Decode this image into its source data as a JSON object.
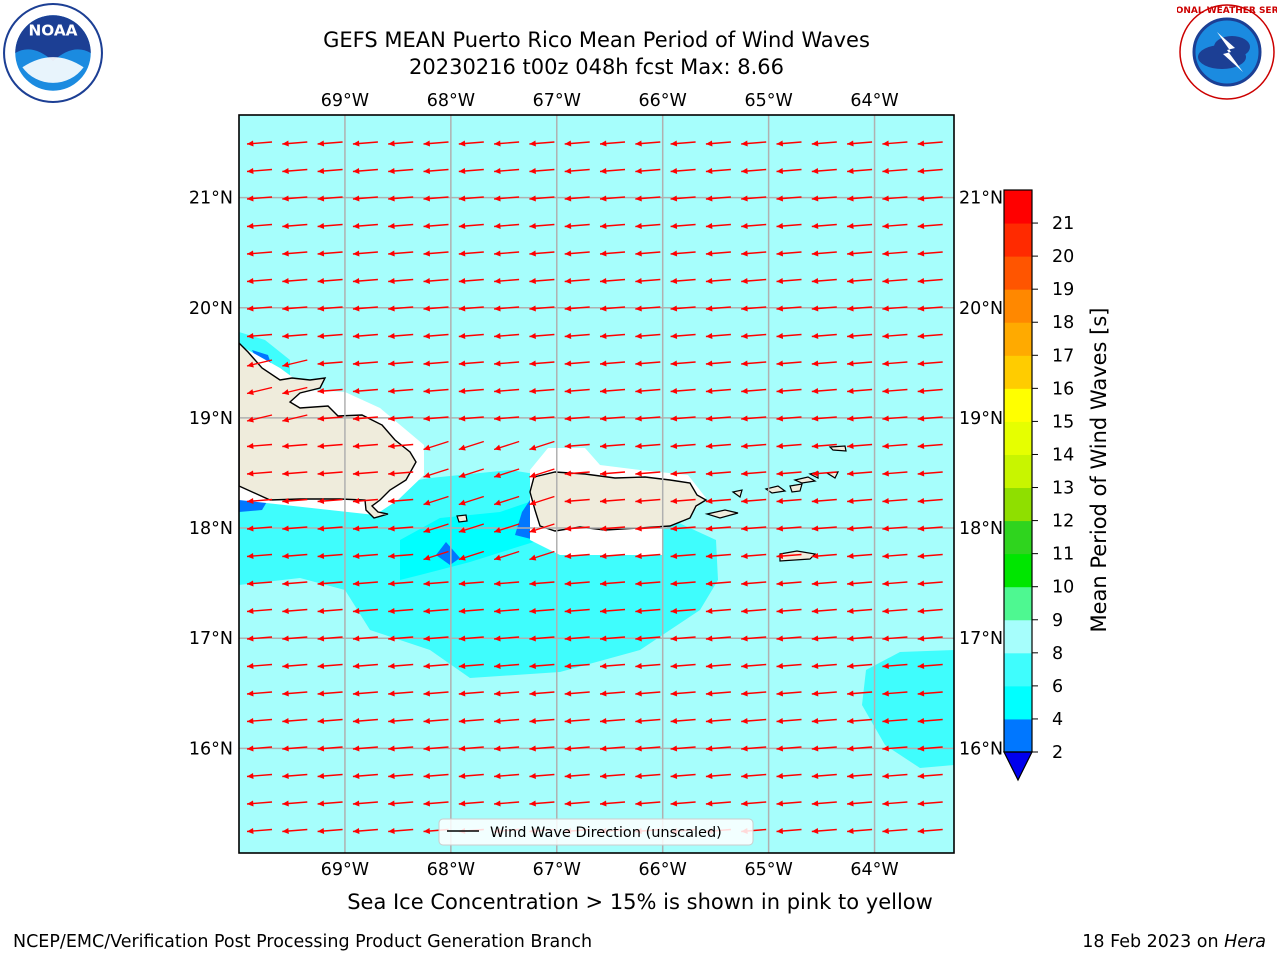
{
  "title": {
    "line1": "GEFS MEAN Puerto Rico Mean Period of Wind Waves",
    "line2": "20230216 t00z 048h fcst   Max: 8.66"
  },
  "logos": {
    "left": {
      "text": "NOAA",
      "icon": "noaa-logo-icon"
    },
    "right": {
      "text": "NATIONAL WEATHER SERVICE",
      "icon": "nws-logo-icon"
    }
  },
  "map": {
    "lon_labels": [
      "69°W",
      "68°W",
      "67°W",
      "66°W",
      "65°W",
      "64°W"
    ],
    "lat_labels": [
      "21°N",
      "20°N",
      "19°N",
      "18°N",
      "17°N",
      "16°N"
    ],
    "lon_values": [
      -69,
      -68,
      -67,
      -66,
      -65,
      -64
    ],
    "lat_values": [
      21,
      20,
      19,
      18,
      17,
      16
    ],
    "lon_range": [
      -70,
      -63.25
    ],
    "lat_range": [
      15.05,
      21.75
    ],
    "legend_label": "Wind Wave Direction (unscaled)",
    "arrow_color": "#ff0000",
    "land_color": "#efecdc",
    "field_colors": {
      "lt6": "#00ffff",
      "6-8": "#3ffdfd",
      "8-9": "#a6fefc",
      "2-4": "#0077ff"
    }
  },
  "colorbar": {
    "label": "Mean Period of Wind Waves [s]",
    "ticks": [
      "2",
      "4",
      "6",
      "8",
      "9",
      "10",
      "11",
      "12",
      "13",
      "14",
      "15",
      "16",
      "17",
      "18",
      "19",
      "20",
      "21"
    ],
    "colors": [
      "#0077ff",
      "#00ffff",
      "#3ffdfd",
      "#a6fefc",
      "#4ef891",
      "#00e600",
      "#2fd41e",
      "#8fdf00",
      "#c8f500",
      "#e6ff00",
      "#ffff00",
      "#ffcc00",
      "#ffaa00",
      "#ff8800",
      "#ff5500",
      "#ff2a00",
      "#ff0000"
    ],
    "extend_color": "#0000ee"
  },
  "note": "Sea Ice Concentration > 15% is shown in pink to yellow",
  "footer": {
    "left": "NCEP/EMC/Verification Post Processing Product Generation Branch",
    "date": "18 Feb 2023 on ",
    "machine": "Hera"
  }
}
